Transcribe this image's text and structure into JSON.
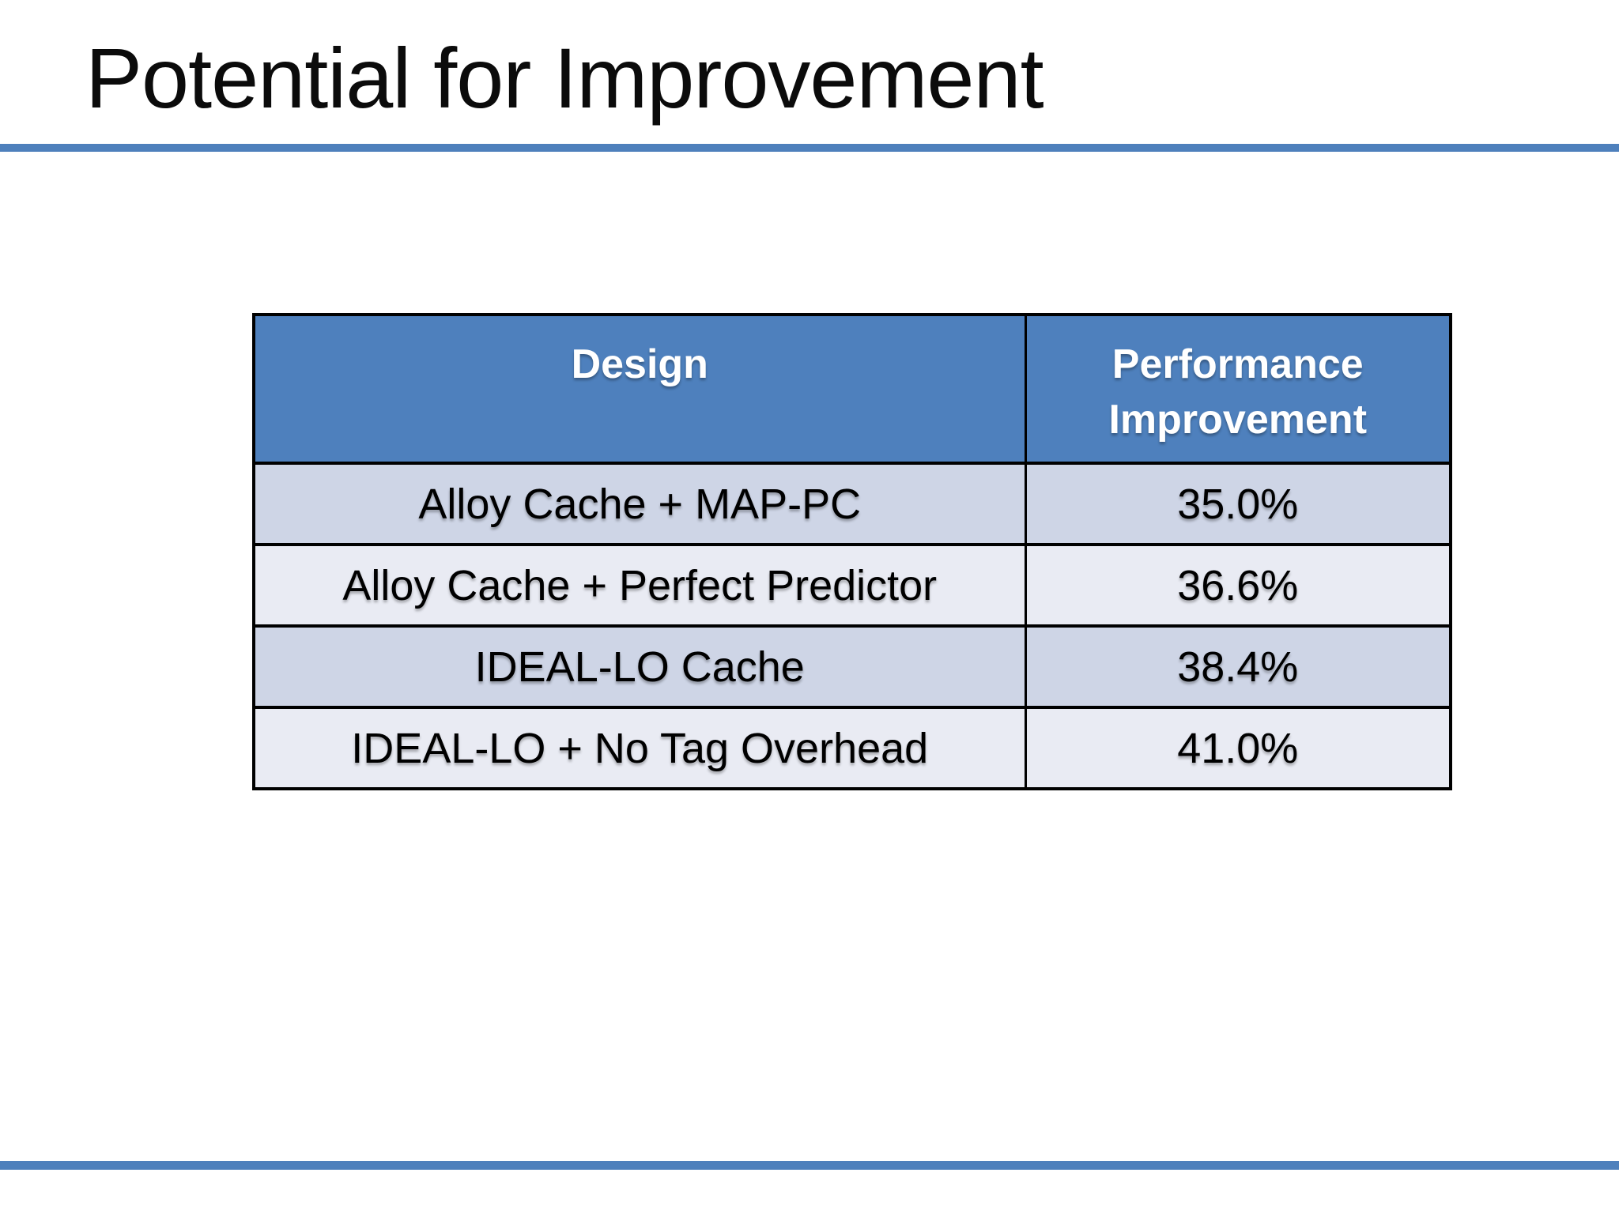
{
  "slide": {
    "title": "Potential for Improvement"
  },
  "theme": {
    "accent_blue": "#4E80BC",
    "table_header_bg": "#4E80BD",
    "row_color_a": "#CED5E6",
    "row_color_b": "#E9EBF3",
    "border_color": "#000000",
    "header_text_color": "#FFFFFF",
    "body_text_color": "#000000"
  },
  "table": {
    "columns": [
      "Design",
      "Performance Improvement"
    ],
    "rows": [
      {
        "design": "Alloy Cache + MAP-PC",
        "improvement": "35.0%"
      },
      {
        "design": "Alloy Cache + Perfect Predictor",
        "improvement": "36.6%"
      },
      {
        "design": "IDEAL-LO Cache",
        "improvement": "38.4%"
      },
      {
        "design": "IDEAL-LO + No Tag Overhead",
        "improvement": "41.0%"
      }
    ]
  },
  "chart_data": {
    "type": "table",
    "title": "Potential for Improvement",
    "columns": [
      "Design",
      "Performance Improvement"
    ],
    "rows": [
      [
        "Alloy Cache + MAP-PC",
        "35.0%"
      ],
      [
        "Alloy Cache + Perfect Predictor",
        "36.6%"
      ],
      [
        "IDEAL-LO Cache",
        "38.4%"
      ],
      [
        "IDEAL-LO + No Tag Overhead",
        "41.0%"
      ]
    ]
  }
}
